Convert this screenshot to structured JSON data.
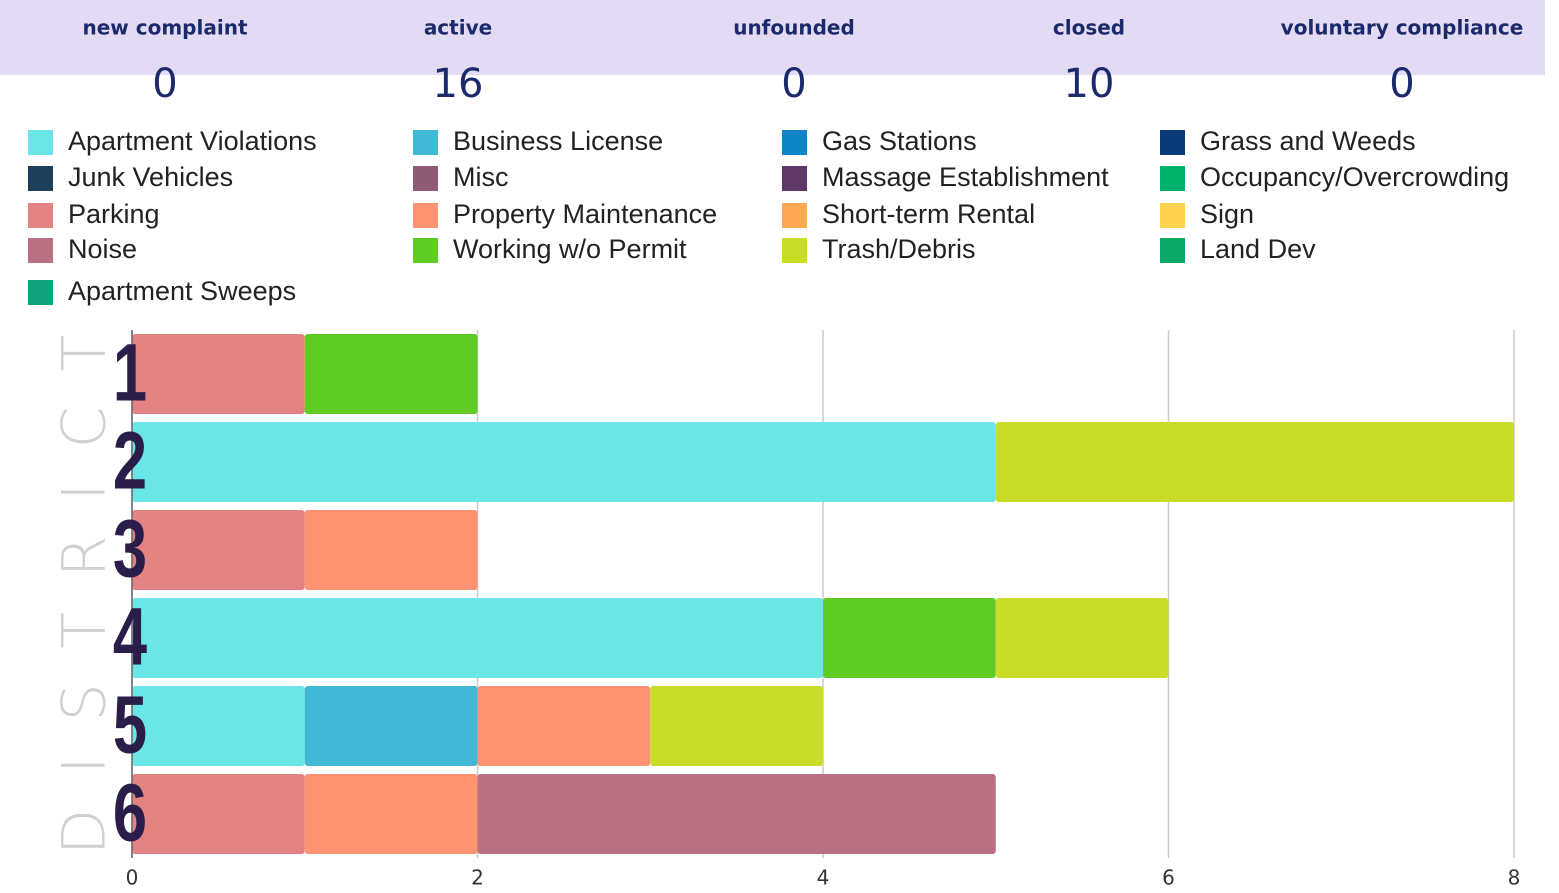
{
  "stats": [
    {
      "label": "new complaint",
      "value": 0
    },
    {
      "label": "active",
      "value": 16
    },
    {
      "label": "unfounded",
      "value": 0
    },
    {
      "label": "closed",
      "value": 10
    },
    {
      "label": "voluntary compliance",
      "value": 0
    }
  ],
  "chart_data": {
    "type": "bar",
    "orientation": "horizontal",
    "stacked": true,
    "y_label": "DISTRICT",
    "categories": [
      "1",
      "2",
      "3",
      "4",
      "5",
      "6"
    ],
    "series": [
      {
        "name": "Apartment Violations",
        "color": "#6ce5e8",
        "values": [
          0,
          5,
          0,
          4,
          1,
          0
        ]
      },
      {
        "name": "Business License",
        "color": "#41b8d5",
        "values": [
          0,
          0,
          0,
          0,
          1,
          0
        ]
      },
      {
        "name": "Gas Stations",
        "color": "#0d83c8",
        "values": [
          0,
          0,
          0,
          0,
          0,
          0
        ]
      },
      {
        "name": "Grass and Weeds",
        "color": "#0b3a7a",
        "values": [
          0,
          0,
          0,
          0,
          0,
          0
        ]
      },
      {
        "name": "Junk Vehicles",
        "color": "#1e3f5a",
        "values": [
          0,
          0,
          0,
          0,
          0,
          0
        ]
      },
      {
        "name": "Misc",
        "color": "#8f5a74",
        "values": [
          0,
          0,
          0,
          0,
          0,
          0
        ]
      },
      {
        "name": "Massage Establishment",
        "color": "#5e3868",
        "values": [
          0,
          0,
          0,
          0,
          0,
          0
        ]
      },
      {
        "name": "Occupancy/Overcrowding",
        "color": "#00b26b",
        "values": [
          0,
          0,
          0,
          0,
          0,
          0
        ]
      },
      {
        "name": "Parking",
        "color": "#e38483",
        "values": [
          1,
          0,
          1,
          0,
          0,
          1
        ]
      },
      {
        "name": "Property Maintenance",
        "color": "#ff9270",
        "values": [
          0,
          0,
          1,
          0,
          1,
          1
        ]
      },
      {
        "name": "Short-term Rental",
        "color": "#ffa952",
        "values": [
          0,
          0,
          0,
          0,
          0,
          0
        ]
      },
      {
        "name": "Sign",
        "color": "#ffd34f",
        "values": [
          0,
          0,
          0,
          0,
          0,
          0
        ]
      },
      {
        "name": "Noise",
        "color": "#b97083",
        "values": [
          0,
          0,
          0,
          0,
          0,
          3
        ]
      },
      {
        "name": "Working w/o Permit",
        "color": "#5ecc22",
        "values": [
          1,
          0,
          0,
          1,
          0,
          0
        ]
      },
      {
        "name": "Trash/Debris",
        "color": "#c8dd26",
        "values": [
          0,
          3,
          0,
          1,
          1,
          0
        ]
      },
      {
        "name": "Land Dev",
        "color": "#0ca868",
        "values": [
          0,
          0,
          0,
          0,
          0,
          0
        ]
      },
      {
        "name": "Apartment Sweeps",
        "color": "#12a37d",
        "values": [
          0,
          0,
          0,
          0,
          0,
          0
        ]
      }
    ],
    "xlim": [
      0,
      8
    ],
    "xticks": [
      0,
      2,
      4,
      6,
      8
    ],
    "grid": true,
    "legend": "top"
  }
}
